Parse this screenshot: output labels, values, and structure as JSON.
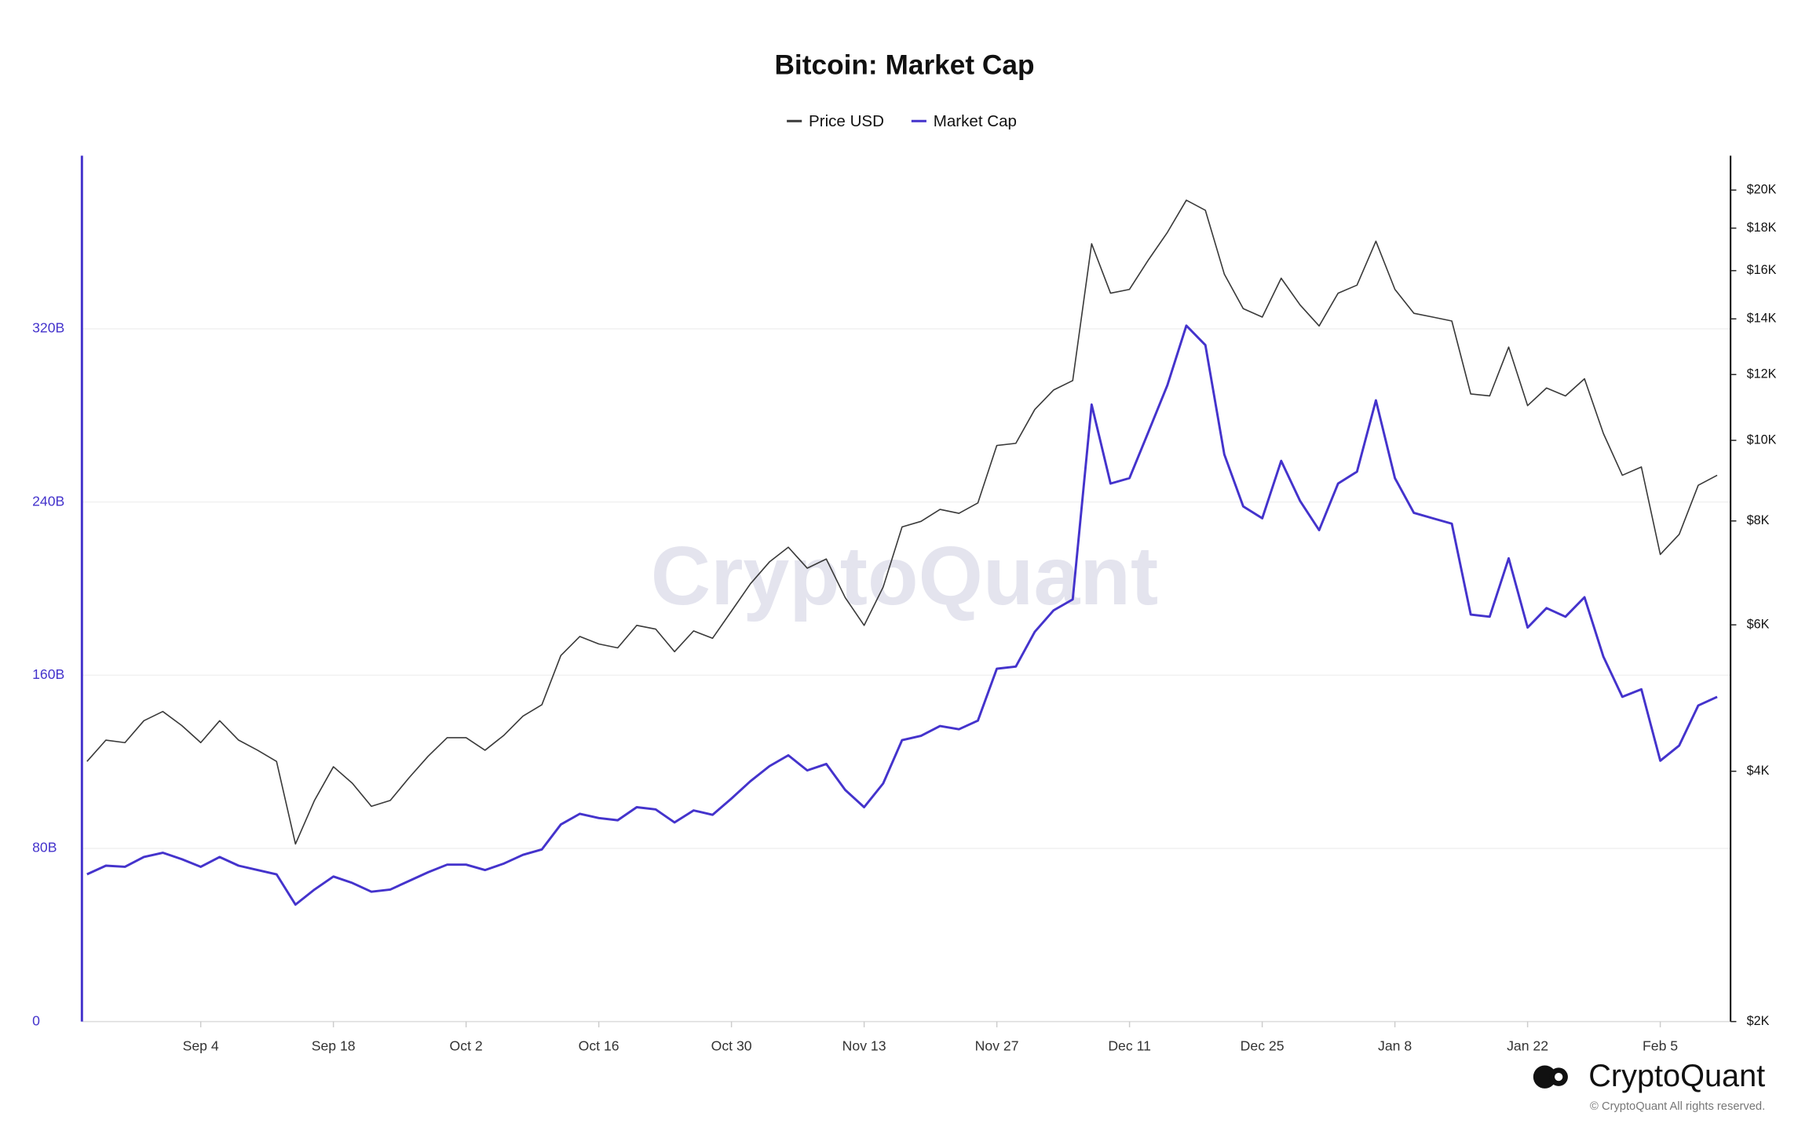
{
  "chart_data": {
    "type": "line",
    "title": "Bitcoin: Market Cap",
    "watermark": "CryptoQuant",
    "brand": "CryptoQuant",
    "copyright": "© CryptoQuant All rights reserved.",
    "categories": [
      null,
      null,
      null,
      null,
      null,
      null,
      "Sep 4",
      null,
      null,
      null,
      null,
      null,
      null,
      "Sep 18",
      null,
      null,
      null,
      null,
      null,
      null,
      "Oct 2",
      null,
      null,
      null,
      null,
      null,
      null,
      "Oct 16",
      null,
      null,
      null,
      null,
      null,
      null,
      "Oct 30",
      null,
      null,
      null,
      null,
      null,
      null,
      "Nov 13",
      null,
      null,
      null,
      null,
      null,
      null,
      "Nov 27",
      null,
      null,
      null,
      null,
      null,
      null,
      "Dec 11",
      null,
      null,
      null,
      null,
      null,
      null,
      "Dec 25",
      null,
      null,
      null,
      null,
      null,
      null,
      "Jan 8",
      null,
      null,
      null,
      null,
      null,
      null,
      "Jan 22",
      null,
      null,
      null,
      null,
      null,
      null,
      "Feb 5",
      null,
      null,
      null
    ],
    "series": [
      {
        "name": "Price USD",
        "color": "#3a3a3a",
        "axis": "y2",
        "values": [
          4110,
          4360,
          4330,
          4600,
          4720,
          4540,
          4330,
          4600,
          4360,
          4240,
          4110,
          3270,
          3690,
          4050,
          3870,
          3630,
          3690,
          3930,
          4170,
          4390,
          4390,
          4240,
          4420,
          4660,
          4810,
          5510,
          5810,
          5690,
          5630,
          5990,
          5930,
          5570,
          5900,
          5780,
          6230,
          6720,
          7140,
          7440,
          7020,
          7200,
          6470,
          5990,
          6660,
          7870,
          7990,
          8260,
          8170,
          8410,
          9860,
          9920,
          10890,
          11500,
          11800,
          17240,
          15030,
          15190,
          16490,
          17790,
          19450,
          18910,
          15850,
          14400,
          14070,
          15670,
          14550,
          13730,
          15030,
          15370,
          17360,
          15190,
          14220,
          14070,
          13920,
          11370,
          11310,
          12950,
          11010,
          11560,
          11310,
          11860,
          10190,
          9080,
          9290,
          7290,
          7710,
          8830,
          9080
        ]
      },
      {
        "name": "Market Cap",
        "color": "#4433cc",
        "values": [
          68,
          72,
          71.5,
          76,
          78,
          75,
          71.5,
          76,
          72,
          70,
          68,
          54,
          61,
          67,
          64,
          60,
          61,
          65,
          69,
          72.5,
          72.5,
          70,
          73,
          77,
          79.5,
          91,
          96,
          94,
          93,
          99,
          98,
          92,
          97.5,
          95.5,
          103,
          111,
          118,
          123,
          116,
          119,
          107,
          99,
          110,
          130,
          132,
          136.5,
          135,
          139,
          163,
          164,
          180,
          190,
          195,
          285,
          248.5,
          251,
          272.5,
          294,
          321.5,
          312.5,
          262,
          238,
          232.5,
          259,
          240.5,
          227,
          248.5,
          254,
          287,
          251,
          235,
          232.5,
          230,
          188,
          187,
          214,
          182,
          191,
          187,
          196,
          168.5,
          150,
          153.5,
          120.5,
          127.5,
          146,
          150
        ]
      }
    ],
    "ylim": [
      0,
      400
    ],
    "yticks": [
      0,
      {
        "value": 80,
        "label": "80B"
      },
      {
        "value": 160,
        "label": "160B"
      },
      {
        "value": 240,
        "label": "240B"
      },
      {
        "value": 320,
        "label": "320B"
      }
    ],
    "y2lim": [
      2000,
      22000
    ],
    "y2log": true,
    "y2ticks": [
      {
        "value": 2000,
        "label": "$2K"
      },
      {
        "value": 4000,
        "label": "$4K"
      },
      {
        "value": 6000,
        "label": "$6K"
      },
      {
        "value": 8000,
        "label": "$8K"
      },
      {
        "value": 10000,
        "label": "$10K"
      },
      {
        "value": 12000,
        "label": "$12K"
      },
      {
        "value": 14000,
        "label": "$14K"
      },
      {
        "value": 16000,
        "label": "$16K"
      },
      {
        "value": 18000,
        "label": "$18K"
      },
      {
        "value": 20000,
        "label": "$20K"
      }
    ],
    "grid": true
  }
}
